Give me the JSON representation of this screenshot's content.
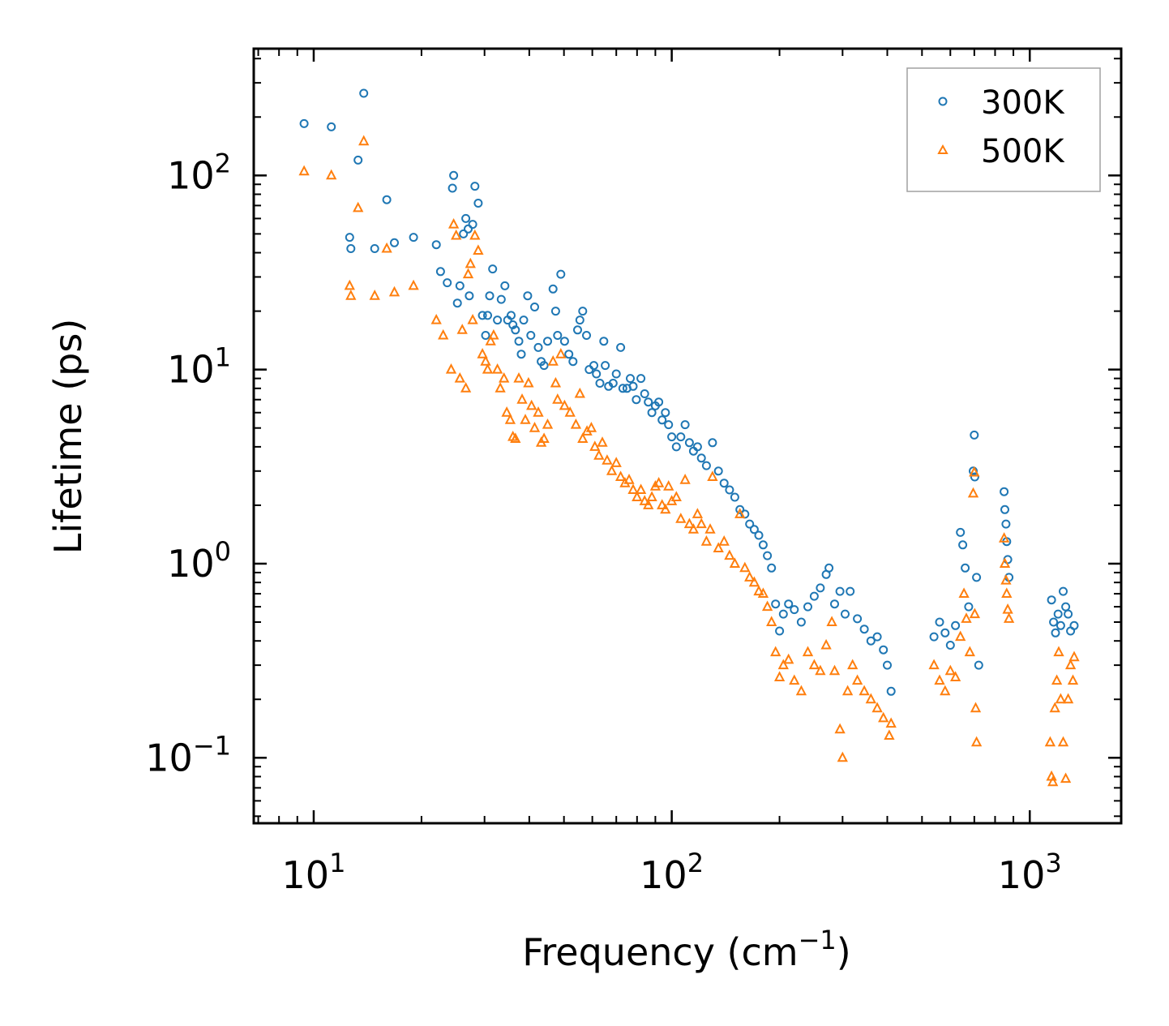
{
  "chart_data": {
    "type": "scatter",
    "title": "",
    "xlabel": "Frequency (cm",
    "xlabel_exponent": "−1",
    "xlabel_suffix": ")",
    "ylabel": "Lifetime (ps)",
    "xscale": "log",
    "yscale": "log",
    "xlim": [
      6.8,
      1800
    ],
    "ylim": [
      0.046,
      450
    ],
    "legend_position": "top-right",
    "x_ticks": [
      {
        "base": "10",
        "exp": "1",
        "value": 10
      },
      {
        "base": "10",
        "exp": "2",
        "value": 100
      },
      {
        "base": "10",
        "exp": "3",
        "value": 1000
      }
    ],
    "y_ticks": [
      {
        "base": "10",
        "exp": "−1",
        "value": 0.1
      },
      {
        "base": "10",
        "exp": "0",
        "value": 1
      },
      {
        "base": "10",
        "exp": "1",
        "value": 10
      },
      {
        "base": "10",
        "exp": "2",
        "value": 100
      }
    ],
    "series": [
      {
        "name": "300K",
        "marker": "circle",
        "color": "#1f77b4",
        "points": [
          [
            9.4,
            185
          ],
          [
            11.2,
            178
          ],
          [
            12.6,
            48
          ],
          [
            12.7,
            42
          ],
          [
            13.3,
            120
          ],
          [
            13.8,
            265
          ],
          [
            14.8,
            42
          ],
          [
            16,
            75
          ],
          [
            16.8,
            45
          ],
          [
            19,
            48
          ],
          [
            22,
            44
          ],
          [
            22.6,
            32
          ],
          [
            23.6,
            28
          ],
          [
            24.4,
            86
          ],
          [
            24.6,
            100
          ],
          [
            25.2,
            22
          ],
          [
            25.6,
            27
          ],
          [
            26.2,
            50
          ],
          [
            26.6,
            60
          ],
          [
            27,
            53
          ],
          [
            27.2,
            24
          ],
          [
            27.8,
            56
          ],
          [
            28.2,
            88
          ],
          [
            28.8,
            72
          ],
          [
            29.6,
            19
          ],
          [
            30.2,
            15
          ],
          [
            30.6,
            19
          ],
          [
            31,
            24
          ],
          [
            31.6,
            33
          ],
          [
            32.6,
            18
          ],
          [
            33.4,
            23
          ],
          [
            34.2,
            27
          ],
          [
            34.8,
            18
          ],
          [
            35.6,
            19
          ],
          [
            36,
            17
          ],
          [
            36.6,
            16
          ],
          [
            37.4,
            14
          ],
          [
            38,
            12
          ],
          [
            38.6,
            18
          ],
          [
            39.6,
            24
          ],
          [
            40.4,
            15
          ],
          [
            41.4,
            21
          ],
          [
            42.4,
            13
          ],
          [
            43.2,
            11
          ],
          [
            44,
            10.5
          ],
          [
            45,
            14
          ],
          [
            46.6,
            26
          ],
          [
            47.4,
            20
          ],
          [
            48,
            15
          ],
          [
            49,
            31
          ],
          [
            50.2,
            14
          ],
          [
            51.6,
            12
          ],
          [
            53,
            11
          ],
          [
            54.6,
            16
          ],
          [
            55.4,
            18
          ],
          [
            56.4,
            20
          ],
          [
            57.8,
            15
          ],
          [
            58.8,
            10
          ],
          [
            60.6,
            10.5
          ],
          [
            61.6,
            9.5
          ],
          [
            63,
            8.5
          ],
          [
            64.6,
            14
          ],
          [
            65.2,
            10.5
          ],
          [
            66.6,
            8.2
          ],
          [
            68.6,
            8.5
          ],
          [
            70,
            9.5
          ],
          [
            72,
            13
          ],
          [
            73,
            8
          ],
          [
            75,
            8
          ],
          [
            76.6,
            9
          ],
          [
            78,
            8.2
          ],
          [
            79.6,
            7
          ],
          [
            82,
            9
          ],
          [
            84,
            7.5
          ],
          [
            86,
            6.8
          ],
          [
            88,
            6
          ],
          [
            90,
            6.5
          ],
          [
            92,
            6.8
          ],
          [
            94,
            5.5
          ],
          [
            96,
            6
          ],
          [
            98,
            5.2
          ],
          [
            100,
            4.5
          ],
          [
            103,
            4
          ],
          [
            106,
            4.5
          ],
          [
            109,
            5.2
          ],
          [
            112,
            4.2
          ],
          [
            115,
            3.8
          ],
          [
            118,
            4
          ],
          [
            121,
            3.5
          ],
          [
            125,
            3.2
          ],
          [
            130,
            4.2
          ],
          [
            135,
            3
          ],
          [
            140,
            2.6
          ],
          [
            145,
            2.4
          ],
          [
            150,
            2.2
          ],
          [
            155,
            1.9
          ],
          [
            160,
            1.8
          ],
          [
            165,
            1.6
          ],
          [
            170,
            1.5
          ],
          [
            175,
            1.4
          ],
          [
            180,
            1.25
          ],
          [
            185,
            1.1
          ],
          [
            190,
            0.95
          ],
          [
            195,
            0.62
          ],
          [
            200,
            0.45
          ],
          [
            205,
            0.55
          ],
          [
            212,
            0.62
          ],
          [
            220,
            0.58
          ],
          [
            230,
            0.5
          ],
          [
            240,
            0.6
          ],
          [
            250,
            0.68
          ],
          [
            260,
            0.75
          ],
          [
            270,
            0.88
          ],
          [
            275,
            0.95
          ],
          [
            285,
            0.62
          ],
          [
            295,
            0.72
          ],
          [
            305,
            0.55
          ],
          [
            315,
            0.72
          ],
          [
            330,
            0.52
          ],
          [
            345,
            0.46
          ],
          [
            360,
            0.4
          ],
          [
            375,
            0.42
          ],
          [
            390,
            0.36
          ],
          [
            400,
            0.3
          ],
          [
            410,
            0.22
          ],
          [
            540,
            0.42
          ],
          [
            560,
            0.5
          ],
          [
            580,
            0.44
          ],
          [
            600,
            0.38
          ],
          [
            620,
            0.48
          ],
          [
            640,
            1.45
          ],
          [
            650,
            1.25
          ],
          [
            660,
            0.95
          ],
          [
            675,
            0.6
          ],
          [
            695,
            3.0
          ],
          [
            700,
            4.6
          ],
          [
            702,
            2.8
          ],
          [
            710,
            0.85
          ],
          [
            720,
            0.3
          ],
          [
            848,
            2.35
          ],
          [
            852,
            1.9
          ],
          [
            858,
            1.6
          ],
          [
            862,
            1.3
          ],
          [
            868,
            1.05
          ],
          [
            875,
            0.85
          ],
          [
            1150,
            0.65
          ],
          [
            1165,
            0.5
          ],
          [
            1180,
            0.44
          ],
          [
            1200,
            0.55
          ],
          [
            1220,
            0.48
          ],
          [
            1240,
            0.72
          ],
          [
            1260,
            0.6
          ],
          [
            1280,
            0.55
          ],
          [
            1300,
            0.45
          ],
          [
            1330,
            0.48
          ]
        ]
      },
      {
        "name": "500K",
        "marker": "triangle",
        "color": "#ff7f0e",
        "points": [
          [
            9.4,
            105
          ],
          [
            11.2,
            100
          ],
          [
            12.6,
            27
          ],
          [
            12.7,
            24
          ],
          [
            13.3,
            68
          ],
          [
            13.8,
            150
          ],
          [
            14.8,
            24
          ],
          [
            16,
            42
          ],
          [
            16.8,
            25
          ],
          [
            19,
            27
          ],
          [
            22,
            18
          ],
          [
            23,
            15
          ],
          [
            24.2,
            10
          ],
          [
            24.6,
            56
          ],
          [
            25,
            49
          ],
          [
            25.6,
            9
          ],
          [
            26,
            16
          ],
          [
            26.6,
            8
          ],
          [
            27,
            31
          ],
          [
            27.4,
            35
          ],
          [
            27.8,
            18
          ],
          [
            28.2,
            49
          ],
          [
            28.8,
            41
          ],
          [
            29.6,
            12
          ],
          [
            30.2,
            11
          ],
          [
            30.6,
            10
          ],
          [
            31.2,
            14
          ],
          [
            31.8,
            15
          ],
          [
            32.6,
            10
          ],
          [
            33.2,
            8
          ],
          [
            34,
            9
          ],
          [
            34.6,
            6
          ],
          [
            35.4,
            5.5
          ],
          [
            36,
            4.5
          ],
          [
            36.6,
            4.4
          ],
          [
            37.4,
            9
          ],
          [
            38.2,
            7
          ],
          [
            39,
            5.5
          ],
          [
            39.8,
            8.5
          ],
          [
            40.6,
            6.5
          ],
          [
            41.4,
            5
          ],
          [
            42.4,
            6
          ],
          [
            43.2,
            4.2
          ],
          [
            44,
            4.4
          ],
          [
            45,
            5.2
          ],
          [
            46.6,
            11
          ],
          [
            47.4,
            8.5
          ],
          [
            48,
            7
          ],
          [
            49,
            12
          ],
          [
            50.2,
            6.5
          ],
          [
            52,
            6
          ],
          [
            54,
            5.2
          ],
          [
            55.4,
            7.5
          ],
          [
            56.4,
            4.4
          ],
          [
            58,
            4.8
          ],
          [
            59.6,
            5
          ],
          [
            61,
            4
          ],
          [
            62.6,
            3.6
          ],
          [
            64,
            4.2
          ],
          [
            66,
            3.4
          ],
          [
            68,
            3
          ],
          [
            70,
            3.3
          ],
          [
            72,
            2.8
          ],
          [
            74,
            2.6
          ],
          [
            76,
            2.7
          ],
          [
            78,
            2.4
          ],
          [
            80,
            2.2
          ],
          [
            82,
            2.4
          ],
          [
            84,
            2.1
          ],
          [
            86,
            2
          ],
          [
            88,
            2.2
          ],
          [
            90,
            2.5
          ],
          [
            92,
            2.6
          ],
          [
            94,
            2
          ],
          [
            96,
            1.9
          ],
          [
            98,
            2.5
          ],
          [
            100,
            2.1
          ],
          [
            103,
            2.2
          ],
          [
            106,
            1.7
          ],
          [
            109,
            2.7
          ],
          [
            112,
            1.6
          ],
          [
            115,
            1.5
          ],
          [
            118,
            1.8
          ],
          [
            121,
            1.6
          ],
          [
            125,
            1.3
          ],
          [
            128,
            1.5
          ],
          [
            130,
            2.8
          ],
          [
            135,
            1.2
          ],
          [
            140,
            1.3
          ],
          [
            145,
            1.1
          ],
          [
            150,
            1.0
          ],
          [
            155,
            1.8
          ],
          [
            160,
            0.95
          ],
          [
            165,
            0.85
          ],
          [
            170,
            0.8
          ],
          [
            175,
            0.72
          ],
          [
            180,
            0.7
          ],
          [
            185,
            0.6
          ],
          [
            190,
            0.5
          ],
          [
            195,
            0.35
          ],
          [
            200,
            0.26
          ],
          [
            205,
            0.3
          ],
          [
            212,
            0.32
          ],
          [
            220,
            0.25
          ],
          [
            230,
            0.22
          ],
          [
            240,
            0.35
          ],
          [
            250,
            0.3
          ],
          [
            260,
            0.28
          ],
          [
            270,
            0.38
          ],
          [
            280,
            0.5
          ],
          [
            285,
            0.28
          ],
          [
            295,
            0.14
          ],
          [
            300,
            0.1
          ],
          [
            310,
            0.22
          ],
          [
            320,
            0.3
          ],
          [
            330,
            0.25
          ],
          [
            345,
            0.22
          ],
          [
            360,
            0.2
          ],
          [
            375,
            0.18
          ],
          [
            390,
            0.16
          ],
          [
            405,
            0.13
          ],
          [
            410,
            0.15
          ],
          [
            540,
            0.3
          ],
          [
            560,
            0.25
          ],
          [
            580,
            0.22
          ],
          [
            600,
            0.28
          ],
          [
            620,
            0.26
          ],
          [
            640,
            0.42
          ],
          [
            655,
            0.7
          ],
          [
            665,
            0.52
          ],
          [
            680,
            0.35
          ],
          [
            695,
            2.3
          ],
          [
            700,
            2.95
          ],
          [
            702,
            0.55
          ],
          [
            706,
            0.18
          ],
          [
            710,
            0.12
          ],
          [
            848,
            1.35
          ],
          [
            852,
            1.0
          ],
          [
            858,
            0.82
          ],
          [
            862,
            0.7
          ],
          [
            868,
            0.58
          ],
          [
            875,
            0.52
          ],
          [
            1140,
            0.12
          ],
          [
            1150,
            0.08
          ],
          [
            1160,
            0.075
          ],
          [
            1175,
            0.18
          ],
          [
            1190,
            0.25
          ],
          [
            1205,
            0.35
          ],
          [
            1220,
            0.2
          ],
          [
            1240,
            0.12
          ],
          [
            1260,
            0.078
          ],
          [
            1280,
            0.2
          ],
          [
            1300,
            0.3
          ],
          [
            1320,
            0.25
          ],
          [
            1330,
            0.33
          ]
        ]
      }
    ]
  }
}
